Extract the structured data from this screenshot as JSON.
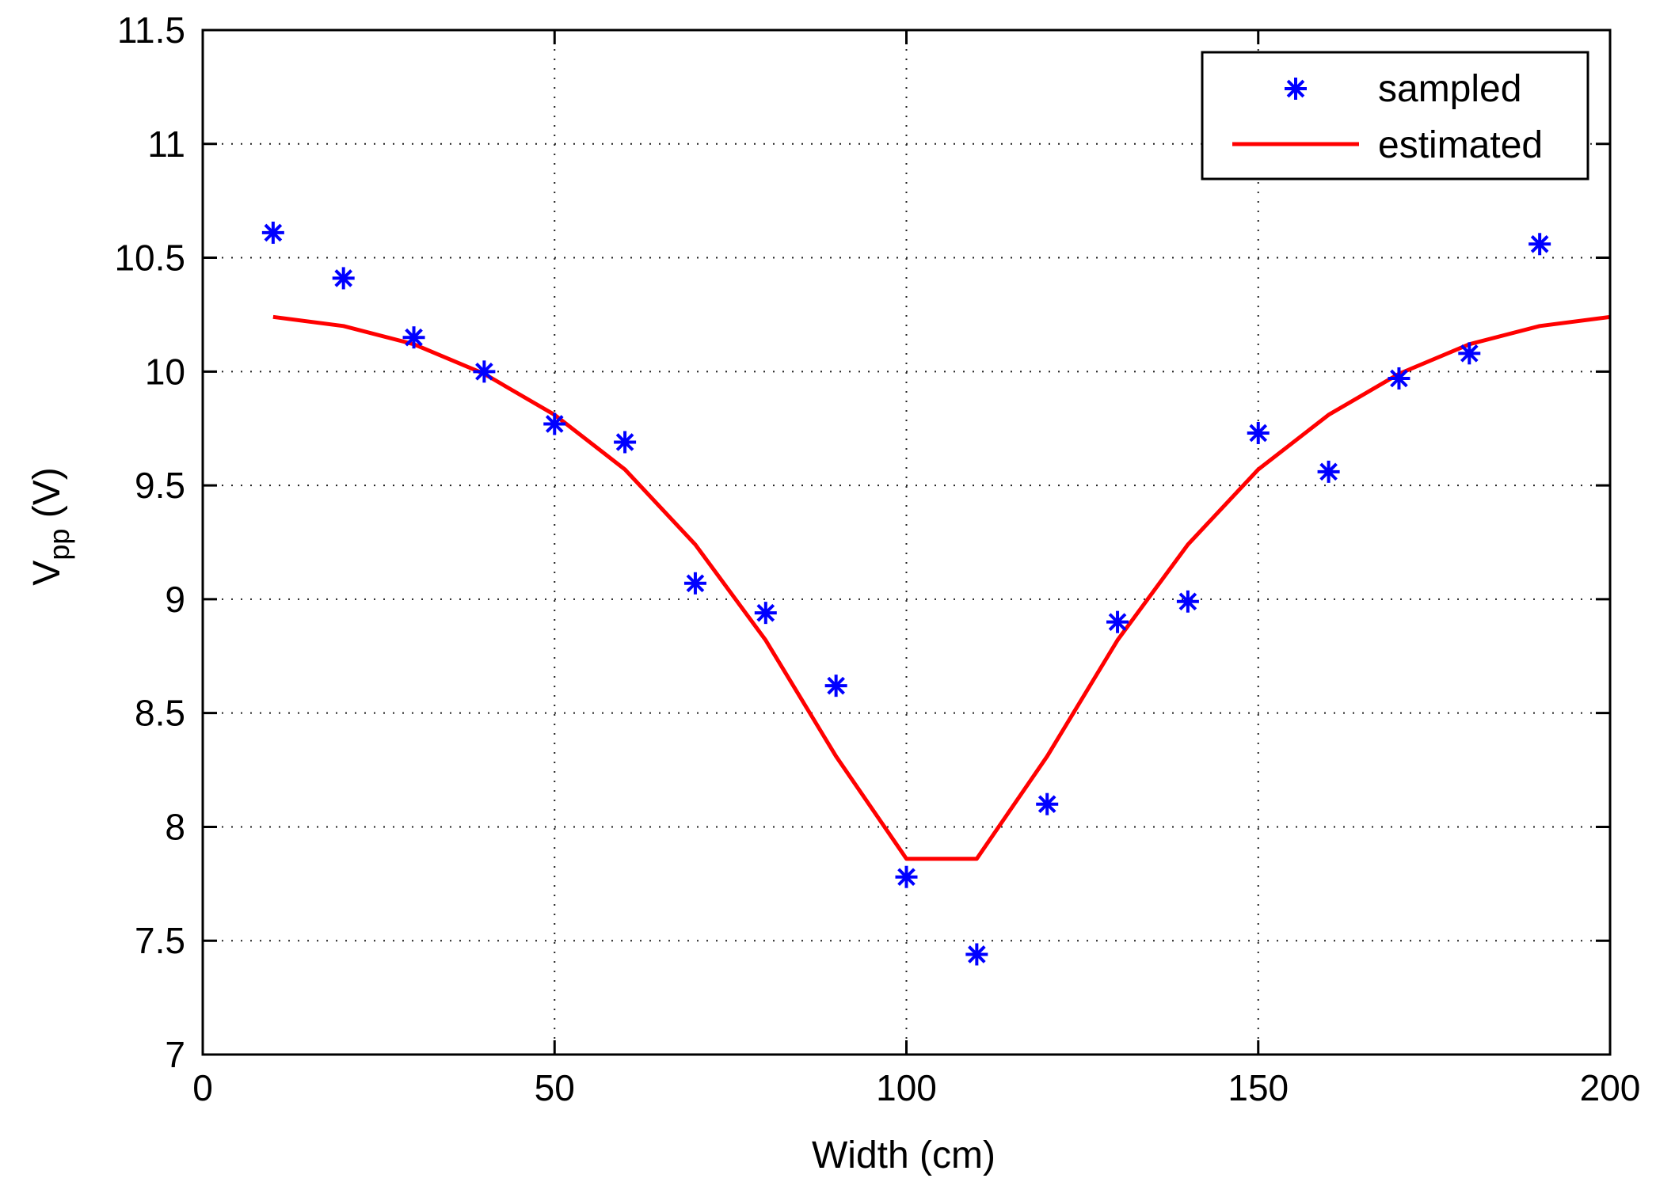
{
  "chart_data": {
    "type": "line",
    "title": "",
    "xlabel": "Width (cm)",
    "ylabel_main": "V",
    "ylabel_sub": "pp",
    "ylabel_unit": " (V)",
    "xlim": [
      0,
      200
    ],
    "ylim": [
      7,
      11.5
    ],
    "xticks": [
      0,
      50,
      100,
      150,
      200
    ],
    "xtick_labels": [
      "0",
      "50",
      "100",
      "150",
      "200"
    ],
    "yticks": [
      7,
      7.5,
      8,
      8.5,
      9,
      9.5,
      10,
      10.5,
      11,
      11.5
    ],
    "ytick_labels": [
      "7",
      "7.5",
      "8",
      "8.5",
      "9",
      "9.5",
      "10",
      "10.5",
      "11",
      "11.5"
    ],
    "grid": true,
    "legend_position": "top-right",
    "series": [
      {
        "name": "sampled",
        "style": "markers",
        "marker": "asterisk",
        "color": "#0000ff",
        "x": [
          10,
          20,
          30,
          40,
          50,
          60,
          70,
          80,
          90,
          100,
          110,
          120,
          130,
          140,
          150,
          160,
          170,
          180,
          190
        ],
        "y": [
          10.61,
          10.41,
          10.15,
          10.0,
          9.77,
          9.69,
          9.07,
          8.94,
          8.62,
          7.78,
          7.44,
          8.1,
          8.9,
          8.99,
          9.73,
          9.56,
          9.97,
          10.08,
          10.56
        ]
      },
      {
        "name": "estimated",
        "style": "line",
        "color": "#ff0000",
        "x": [
          10,
          20,
          30,
          40,
          50,
          60,
          70,
          80,
          90,
          100,
          110,
          120,
          130,
          140,
          150,
          160,
          170,
          180,
          190,
          200
        ],
        "y": [
          10.24,
          10.2,
          10.12,
          9.99,
          9.81,
          9.57,
          9.24,
          8.82,
          8.31,
          7.86,
          7.86,
          8.31,
          8.82,
          9.24,
          9.57,
          9.81,
          9.99,
          10.12,
          10.2,
          10.24
        ]
      }
    ]
  }
}
